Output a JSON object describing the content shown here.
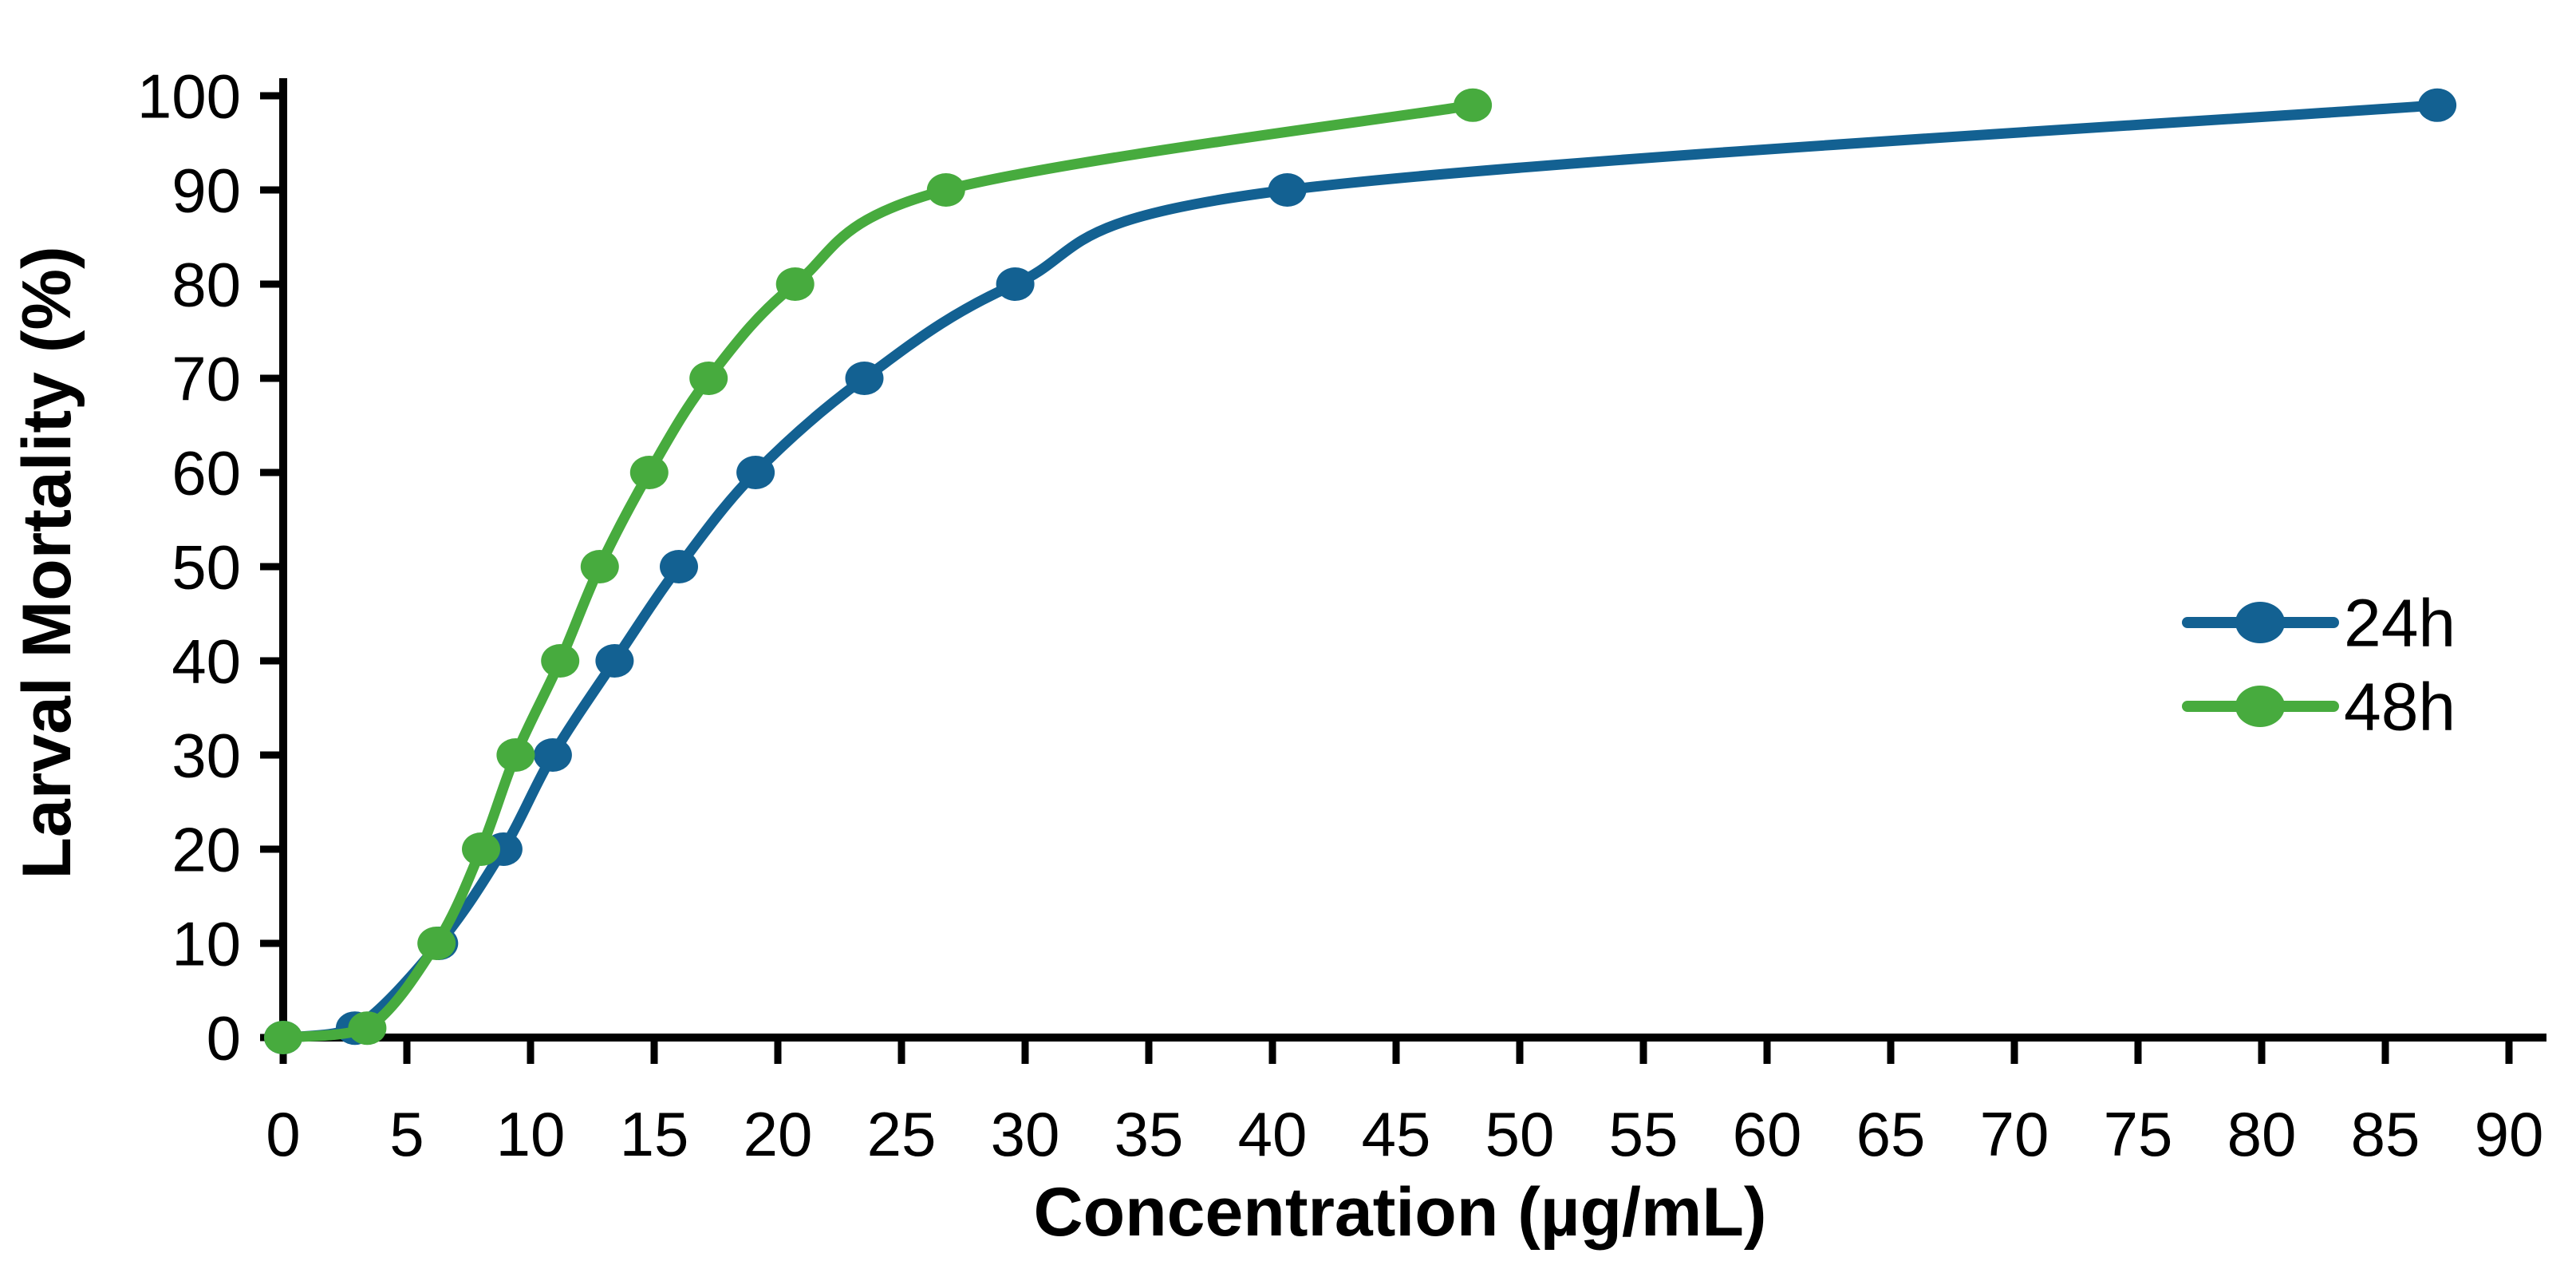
{
  "chart_data": {
    "type": "line",
    "title": "",
    "xlabel": "Concentration (µg/mL)",
    "ylabel": "Larval Mortality (%)",
    "xlim": [
      0,
      90
    ],
    "ylim": [
      0,
      100
    ],
    "x_ticks": [
      0,
      5,
      10,
      15,
      20,
      25,
      30,
      35,
      40,
      45,
      50,
      55,
      60,
      65,
      70,
      75,
      80,
      85,
      90
    ],
    "y_ticks": [
      0,
      10,
      20,
      30,
      40,
      50,
      60,
      70,
      80,
      90,
      100
    ],
    "grid": false,
    "axis_color": "#000000",
    "legend_position": "middle-right",
    "series": [
      {
        "name": "24h",
        "color": "#136192",
        "points": [
          [
            0,
            0
          ],
          [
            2.9,
            1
          ],
          [
            6.3,
            10
          ],
          [
            8.9,
            20
          ],
          [
            10.9,
            30
          ],
          [
            13.4,
            40
          ],
          [
            16.0,
            50
          ],
          [
            19.1,
            60
          ],
          [
            23.5,
            70
          ],
          [
            29.6,
            80
          ],
          [
            40.6,
            90
          ],
          [
            87.1,
            99
          ]
        ]
      },
      {
        "name": "48h",
        "color": "#47AB3E",
        "points": [
          [
            0,
            0
          ],
          [
            3.4,
            1
          ],
          [
            6.2,
            10
          ],
          [
            8.0,
            20
          ],
          [
            9.4,
            30
          ],
          [
            11.2,
            40
          ],
          [
            12.8,
            50
          ],
          [
            14.8,
            60
          ],
          [
            17.2,
            70
          ],
          [
            20.7,
            80
          ],
          [
            26.8,
            90
          ],
          [
            48.1,
            99
          ]
        ]
      }
    ]
  }
}
